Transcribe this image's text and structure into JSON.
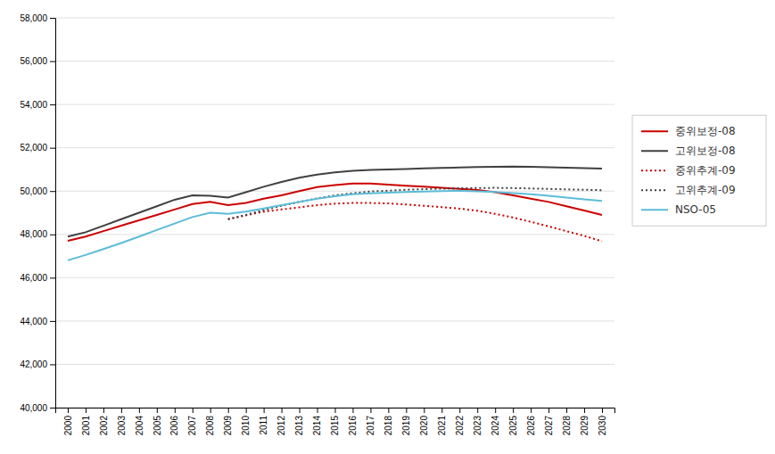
{
  "chart_data": {
    "type": "line",
    "x": [
      2000,
      2001,
      2002,
      2003,
      2004,
      2005,
      2006,
      2007,
      2008,
      2009,
      2010,
      2011,
      2012,
      2013,
      2014,
      2015,
      2016,
      2017,
      2018,
      2019,
      2020,
      2021,
      2022,
      2023,
      2024,
      2025,
      2026,
      2027,
      2028,
      2029,
      2030
    ],
    "series": [
      {
        "name": "중위보정-08",
        "color": "#cc0000",
        "line_style": "solid",
        "values": [
          47700,
          47900,
          48150,
          48400,
          48650,
          48900,
          49150,
          49400,
          49500,
          49350,
          49450,
          49650,
          49800,
          50000,
          50180,
          50280,
          50350,
          50350,
          50300,
          50250,
          50200,
          50150,
          50100,
          50050,
          49950,
          49800,
          49650,
          49500,
          49300,
          49100,
          48900
        ]
      },
      {
        "name": "고위보정-08",
        "color": "#404040",
        "line_style": "solid",
        "values": [
          47900,
          48100,
          48400,
          48700,
          49000,
          49300,
          49600,
          49800,
          49780,
          49700,
          49950,
          50200,
          50420,
          50620,
          50760,
          50860,
          50940,
          50980,
          51000,
          51020,
          51050,
          51070,
          51090,
          51110,
          51120,
          51130,
          51120,
          51100,
          51080,
          51060,
          51040
        ]
      },
      {
        "name": "중위추계-09",
        "color": "#cc0000",
        "line_style": "dotted",
        "values": [
          null,
          null,
          null,
          null,
          null,
          null,
          null,
          null,
          null,
          48700,
          48880,
          49050,
          49150,
          49250,
          49350,
          49420,
          49450,
          49450,
          49430,
          49380,
          49320,
          49260,
          49190,
          49090,
          48950,
          48780,
          48580,
          48370,
          48150,
          47930,
          47680
        ]
      },
      {
        "name": "고위추계-09",
        "color": "#404040",
        "line_style": "dotted",
        "values": [
          null,
          null,
          null,
          null,
          null,
          null,
          null,
          null,
          null,
          48700,
          48900,
          49120,
          49320,
          49500,
          49660,
          49800,
          49900,
          49980,
          50020,
          50060,
          50090,
          50110,
          50130,
          50140,
          50150,
          50140,
          50120,
          50100,
          50080,
          50060,
          50040
        ]
      },
      {
        "name": "NSO-05",
        "color": "#5bbcd8",
        "line_style": "solid",
        "values": [
          46800,
          47050,
          47320,
          47600,
          47900,
          48200,
          48500,
          48800,
          49000,
          48950,
          49050,
          49200,
          49350,
          49500,
          49650,
          49760,
          49850,
          49900,
          49930,
          49960,
          49980,
          50000,
          50010,
          49990,
          49960,
          49910,
          49850,
          49780,
          49700,
          49620,
          49550
        ]
      }
    ],
    "xlim": [
      1999.3,
      2030.7
    ],
    "xticks": [
      2000,
      2001,
      2002,
      2003,
      2004,
      2005,
      2006,
      2007,
      2008,
      2009,
      2010,
      2011,
      2012,
      2013,
      2014,
      2015,
      2016,
      2017,
      2018,
      2019,
      2020,
      2021,
      2022,
      2023,
      2024,
      2025,
      2026,
      2027,
      2028,
      2029,
      2030
    ],
    "ylim": [
      40000,
      58000
    ],
    "yticks": [
      {
        "value": 40000,
        "label": "40,000"
      },
      {
        "value": 42000,
        "label": "42,000"
      },
      {
        "value": 44000,
        "label": "44,000"
      },
      {
        "value": 46000,
        "label": "46,000"
      },
      {
        "value": 48000,
        "label": "48,000"
      },
      {
        "value": 50000,
        "label": "50,000"
      },
      {
        "value": 52000,
        "label": "52,000"
      },
      {
        "value": 54000,
        "label": "54,000"
      },
      {
        "value": 56000,
        "label": "56,000"
      },
      {
        "value": 58000,
        "label": "58,000"
      }
    ],
    "grid": true,
    "legend": "right"
  }
}
